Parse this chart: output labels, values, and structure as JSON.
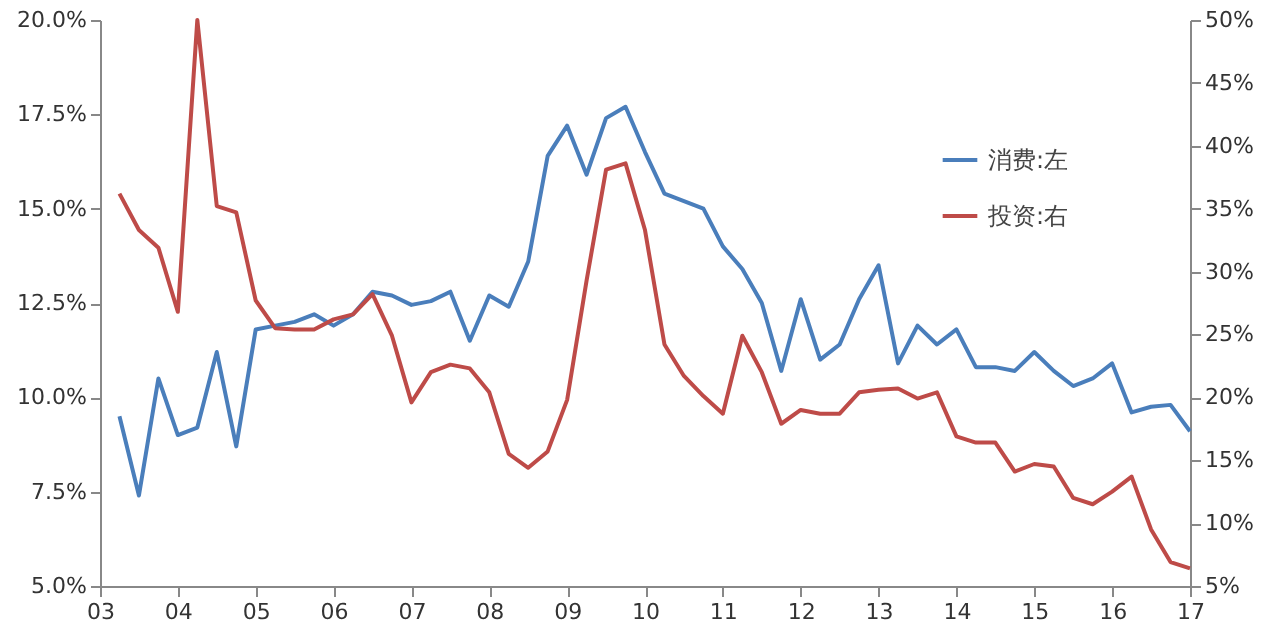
{
  "chart_data": {
    "type": "line",
    "x": [
      2003.25,
      2003.5,
      2003.75,
      2004,
      2004.25,
      2004.5,
      2004.75,
      2005,
      2005.25,
      2005.5,
      2005.75,
      2006,
      2006.25,
      2006.5,
      2006.75,
      2007,
      2007.25,
      2007.5,
      2007.75,
      2008,
      2008.25,
      2008.5,
      2008.75,
      2009,
      2009.25,
      2009.5,
      2009.75,
      2010,
      2010.25,
      2010.5,
      2010.75,
      2011,
      2011.25,
      2011.5,
      2011.75,
      2012,
      2012.25,
      2012.5,
      2012.75,
      2013,
      2013.25,
      2013.5,
      2013.75,
      2014,
      2014.25,
      2014.5,
      2014.75,
      2015,
      2015.25,
      2015.5,
      2015.75,
      2016,
      2016.25,
      2016.5,
      2016.75,
      2017
    ],
    "series": [
      {
        "name": "消费:左",
        "color": "#4a7ebb",
        "values": [
          9.5,
          7.4,
          10.5,
          9.0,
          9.2,
          11.2,
          8.7,
          11.8,
          11.9,
          12.0,
          12.2,
          11.9,
          12.2,
          12.8,
          12.7,
          12.45,
          12.55,
          12.8,
          11.5,
          12.7,
          12.4,
          13.6,
          16.4,
          17.2,
          15.9,
          17.4,
          17.7,
          16.5,
          15.4,
          15.2,
          15.0,
          14.0,
          13.4,
          12.5,
          10.7,
          12.6,
          11.0,
          11.4,
          12.6,
          13.5,
          10.9,
          11.9,
          11.4,
          11.8,
          10.8,
          10.8,
          10.7,
          11.2,
          10.7,
          10.3,
          10.5,
          10.9,
          9.6,
          9.75,
          9.8,
          9.1
        ]
      },
      {
        "name": "投资:右",
        "color": "#be4b48",
        "axis": "y2",
        "values": [
          36.2,
          33.3,
          31.9,
          26.8,
          50,
          35.2,
          34.7,
          27.7,
          25.5,
          25.4,
          25.4,
          26.2,
          26.6,
          28.2,
          24.9,
          19.6,
          22.0,
          22.6,
          22.3,
          20.4,
          15.5,
          14.4,
          15.7,
          19.8,
          29.3,
          38.1,
          38.6,
          33.3,
          24.2,
          21.7,
          20.1,
          18.7,
          24.9,
          22.0,
          17.9,
          19.0,
          18.7,
          18.7,
          20.4,
          20.6,
          20.7,
          19.9,
          20.4,
          16.9,
          16.4,
          16.4,
          14.1,
          14.7,
          14.5,
          12.0,
          11.5,
          12.5,
          13.7,
          9.5,
          6.9,
          6.4
        ]
      }
    ],
    "xlim": [
      2003,
      2017
    ],
    "xticks": [
      {
        "value": 2003,
        "label": "03"
      },
      {
        "value": 2004,
        "label": "04"
      },
      {
        "value": 2005,
        "label": "05"
      },
      {
        "value": 2006,
        "label": "06"
      },
      {
        "value": 2007,
        "label": "07"
      },
      {
        "value": 2008,
        "label": "08"
      },
      {
        "value": 2009,
        "label": "09"
      },
      {
        "value": 2010,
        "label": "10"
      },
      {
        "value": 2011,
        "label": "11"
      },
      {
        "value": 2012,
        "label": "12"
      },
      {
        "value": 2013,
        "label": "13"
      },
      {
        "value": 2014,
        "label": "14"
      },
      {
        "value": 2015,
        "label": "15"
      },
      {
        "value": 2016,
        "label": "16"
      },
      {
        "value": 2017,
        "label": "17"
      }
    ],
    "ylim": [
      5,
      20
    ],
    "yticks": [
      {
        "value": 5,
        "label": "5.0%"
      },
      {
        "value": 7.5,
        "label": "7.5%"
      },
      {
        "value": 10,
        "label": "10.0%"
      },
      {
        "value": 12.5,
        "label": "12.5%"
      },
      {
        "value": 15,
        "label": "15.0%"
      },
      {
        "value": 17.5,
        "label": "17.5%"
      },
      {
        "value": 20,
        "label": "20.0%"
      }
    ],
    "y2lim": [
      5,
      50
    ],
    "y2ticks": [
      {
        "value": 5,
        "label": "5%"
      },
      {
        "value": 10,
        "label": "10%"
      },
      {
        "value": 15,
        "label": "15%"
      },
      {
        "value": 20,
        "label": "20%"
      },
      {
        "value": 25,
        "label": "25%"
      },
      {
        "value": 30,
        "label": "30%"
      },
      {
        "value": 35,
        "label": "35%"
      },
      {
        "value": 40,
        "label": "40%"
      },
      {
        "value": 45,
        "label": "45%"
      },
      {
        "value": 50,
        "label": "50%"
      }
    ],
    "legend": "top right",
    "grid": false,
    "marker": "none",
    "line_style": "solid"
  }
}
